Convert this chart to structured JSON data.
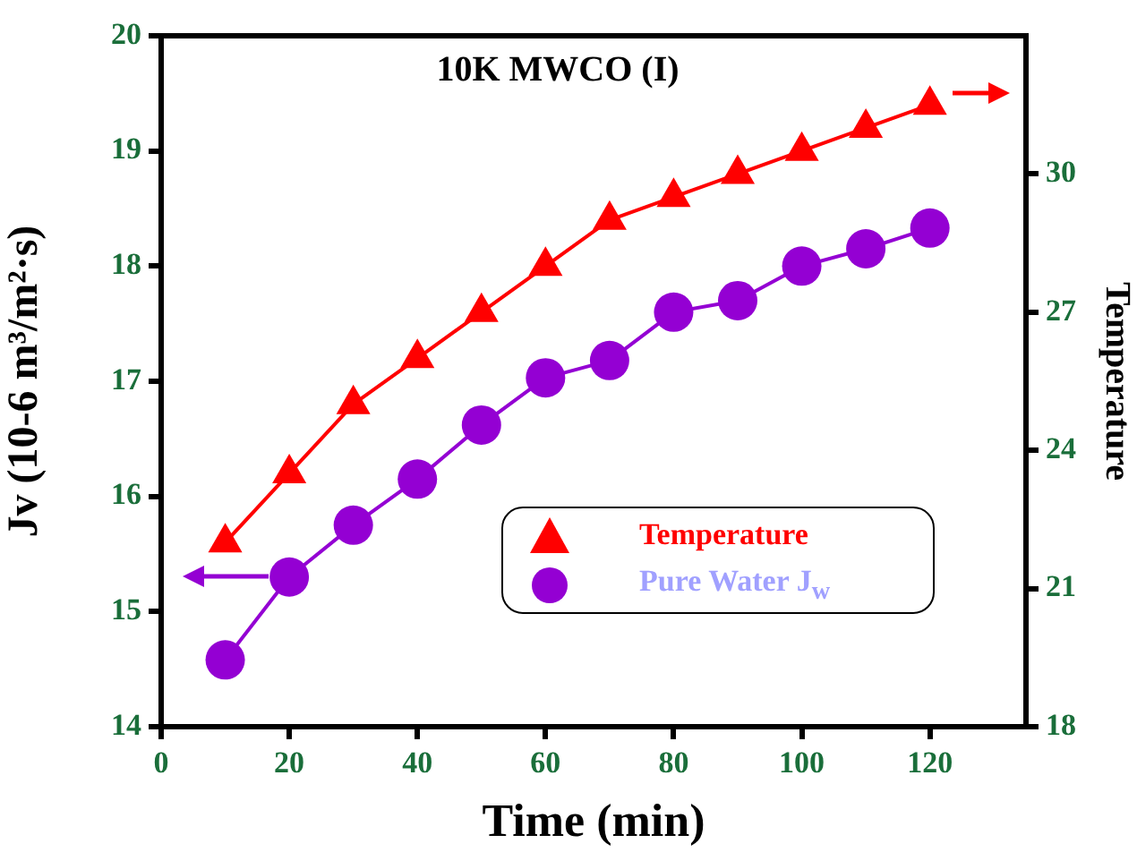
{
  "chart_data": {
    "type": "line",
    "title": "10K MWCO (I)",
    "xlabel": "Time (min)",
    "ylabel": "Jv (10-6 m³/m²·s)",
    "y2label": "Temperature",
    "x": [
      10,
      20,
      30,
      40,
      50,
      60,
      70,
      80,
      90,
      100,
      110,
      120
    ],
    "series": [
      {
        "name": "Temperature",
        "color": "#ff0000",
        "axis": "y2",
        "marker": "triangle",
        "values": [
          22,
          23.5,
          25,
          26,
          27,
          28,
          29,
          29.5,
          30,
          30.5,
          31,
          31.5
        ]
      },
      {
        "name": "Pure Water J$_{w}$",
        "color": "#9400d3",
        "marker": "circle",
        "values": [
          14.58,
          15.3,
          15.75,
          16.15,
          16.62,
          17.03,
          17.18,
          17.6,
          17.7,
          18.0,
          18.15,
          18.33
        ]
      }
    ],
    "xlim": [
      0,
      135
    ],
    "xticks": [
      0,
      20,
      40,
      60,
      80,
      100,
      120
    ],
    "ylim": [
      14,
      20
    ],
    "yticks": [
      14,
      15,
      16,
      17,
      18,
      19,
      20
    ],
    "y2lim": [
      18,
      33
    ],
    "y2ticks": [
      18,
      21,
      24,
      27,
      30
    ],
    "grid": false,
    "legend": "bottom right",
    "line_style": "solid"
  }
}
